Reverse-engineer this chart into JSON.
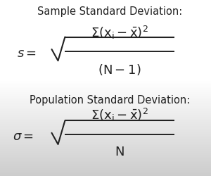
{
  "title1": "Sample Standard Deviation:",
  "title2": "Population Standard Deviation:",
  "formula1_lhs": "$s =$",
  "formula2_lhs": "$\\sigma =$",
  "bg_color_top": "#ffffff",
  "bg_color_mid": "#e8e8e8",
  "bg_color_bottom": "#cccccc",
  "text_color": "#222222",
  "fig_width": 3.0,
  "fig_height": 2.5,
  "dpi": 100,
  "title_fontsize": 10.5,
  "formula_fontsize": 13
}
